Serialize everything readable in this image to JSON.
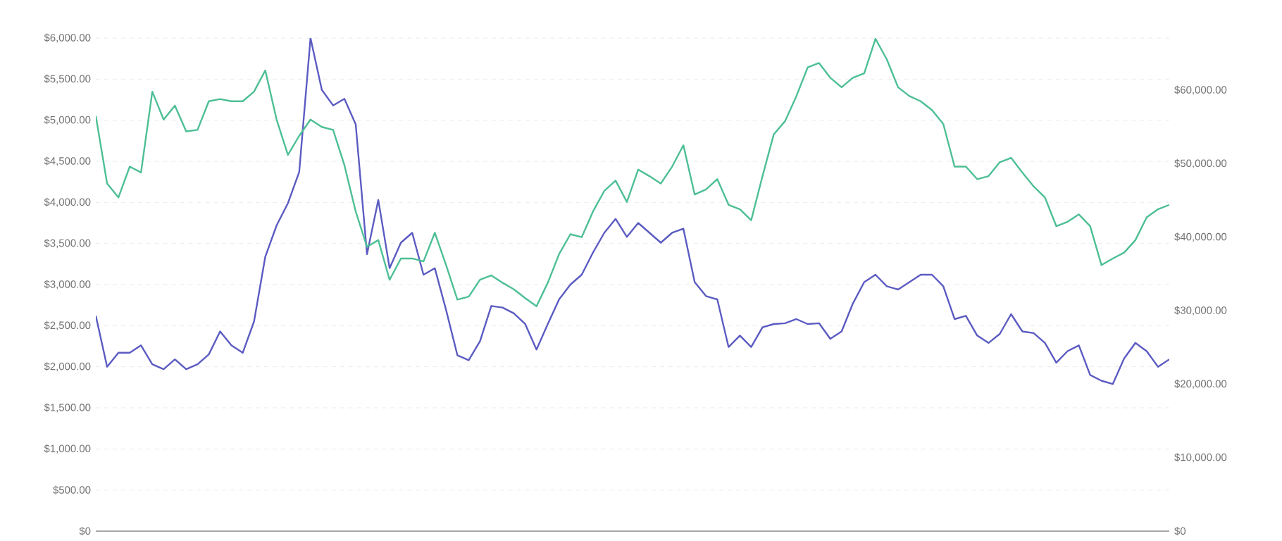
{
  "chart_data": {
    "type": "line",
    "grid": "y",
    "categories": [
      null,
      null,
      null,
      null,
      null,
      null,
      null,
      null,
      null,
      null,
      null,
      null,
      null,
      null,
      null,
      null,
      null,
      null,
      null,
      null,
      null,
      null,
      null,
      null,
      null,
      null,
      null,
      null,
      null,
      null,
      null,
      null,
      null,
      null,
      null,
      null,
      null,
      null,
      null,
      null,
      null,
      null,
      null,
      null,
      null,
      null,
      null,
      null,
      null,
      null,
      null,
      null,
      null,
      null,
      null,
      null,
      null,
      null,
      null,
      null,
      null,
      null,
      null,
      null,
      null,
      null,
      null,
      null,
      null,
      null,
      null,
      null,
      null,
      null,
      null,
      null,
      null,
      null,
      null,
      null,
      null,
      null,
      null,
      null,
      null,
      null,
      null,
      null,
      null,
      null,
      null,
      null,
      null,
      null,
      null,
      null
    ],
    "ylim": [
      0,
      6000
    ],
    "yticks": [
      {
        "value": 0,
        "label": "$0"
      },
      {
        "value": 500,
        "label": "$500.00"
      },
      {
        "value": 1000,
        "label": "$1,000.00"
      },
      {
        "value": 1500,
        "label": "$1,500.00"
      },
      {
        "value": 2000,
        "label": "$2,000.00"
      },
      {
        "value": 2500,
        "label": "$2,500.00"
      },
      {
        "value": 3000,
        "label": "$3,000.00"
      },
      {
        "value": 3500,
        "label": "$3,500.00"
      },
      {
        "value": 4000,
        "label": "$4,000.00"
      },
      {
        "value": 4500,
        "label": "$4,500.00"
      },
      {
        "value": 5000,
        "label": "$5,000.00"
      },
      {
        "value": 5500,
        "label": "$5,500.00"
      },
      {
        "value": 6000,
        "label": "$6,000.00"
      }
    ],
    "y2lim": [
      0,
      67100
    ],
    "y2ticks": [
      {
        "value": 0,
        "label": "$0"
      },
      {
        "value": 10000,
        "label": "$10,000.00"
      },
      {
        "value": 20000,
        "label": "$20,000.00"
      },
      {
        "value": 30000,
        "label": "$30,000.00"
      },
      {
        "value": 40000,
        "label": "$40,000.00"
      },
      {
        "value": 50000,
        "label": "$50,000.00"
      },
      {
        "value": 60000,
        "label": "$60,000.00"
      }
    ],
    "series": [
      {
        "color": "#5b5bc2",
        "values": [
          2620,
          2000,
          2170,
          2170,
          2260,
          2030,
          1970,
          2090,
          1970,
          2030,
          2150,
          2430,
          2260,
          2170,
          2550,
          3340,
          3720,
          3990,
          4370,
          6000,
          5370,
          5180,
          5260,
          4950,
          3370,
          4030,
          3200,
          3510,
          3630,
          3120,
          3200,
          2690,
          2140,
          2080,
          2310,
          2740,
          2720,
          2650,
          2520,
          2210,
          2520,
          2820,
          3000,
          3120,
          3390,
          3630,
          3800,
          3580,
          3750,
          3630,
          3510,
          3630,
          3680,
          3030,
          2860,
          2820,
          2240,
          2380,
          2240,
          2480,
          2520,
          2530,
          2580,
          2520,
          2530,
          2340,
          2430,
          2770,
          3030,
          3120,
          2980,
          2940,
          3030,
          3120,
          3120,
          2980,
          2580,
          2620,
          2380,
          2290,
          2400,
          2640,
          2430,
          2410,
          2290,
          2050,
          2190,
          2260,
          1900,
          1830,
          1790,
          2100,
          2290,
          2190,
          2000,
          2090
        ]
      },
      {
        "color": "#4dbf94",
        "axis": "y2",
        "values": [
          56500,
          47300,
          45400,
          49600,
          48800,
          59800,
          56000,
          57900,
          54400,
          54600,
          58500,
          58800,
          58500,
          58500,
          59800,
          62700,
          56000,
          51200,
          53800,
          56000,
          55000,
          54600,
          49800,
          43500,
          38700,
          39600,
          34200,
          37100,
          37100,
          36700,
          40600,
          36200,
          31500,
          31900,
          34200,
          34800,
          33800,
          32900,
          31700,
          30600,
          33800,
          37700,
          40400,
          40000,
          43500,
          46300,
          47700,
          44800,
          49200,
          48300,
          47300,
          49600,
          52500,
          45800,
          46500,
          47900,
          44400,
          43800,
          42300,
          48300,
          54000,
          55800,
          59200,
          63100,
          63700,
          61700,
          60400,
          61700,
          62300,
          67000,
          64200,
          60400,
          59200,
          58500,
          57300,
          55400,
          49600,
          49600,
          47900,
          48300,
          50200,
          50800,
          48800,
          46900,
          45400,
          41500,
          42100,
          43100,
          41500,
          36200,
          37100,
          37900,
          39600,
          42700,
          43800,
          44400
        ]
      }
    ]
  }
}
